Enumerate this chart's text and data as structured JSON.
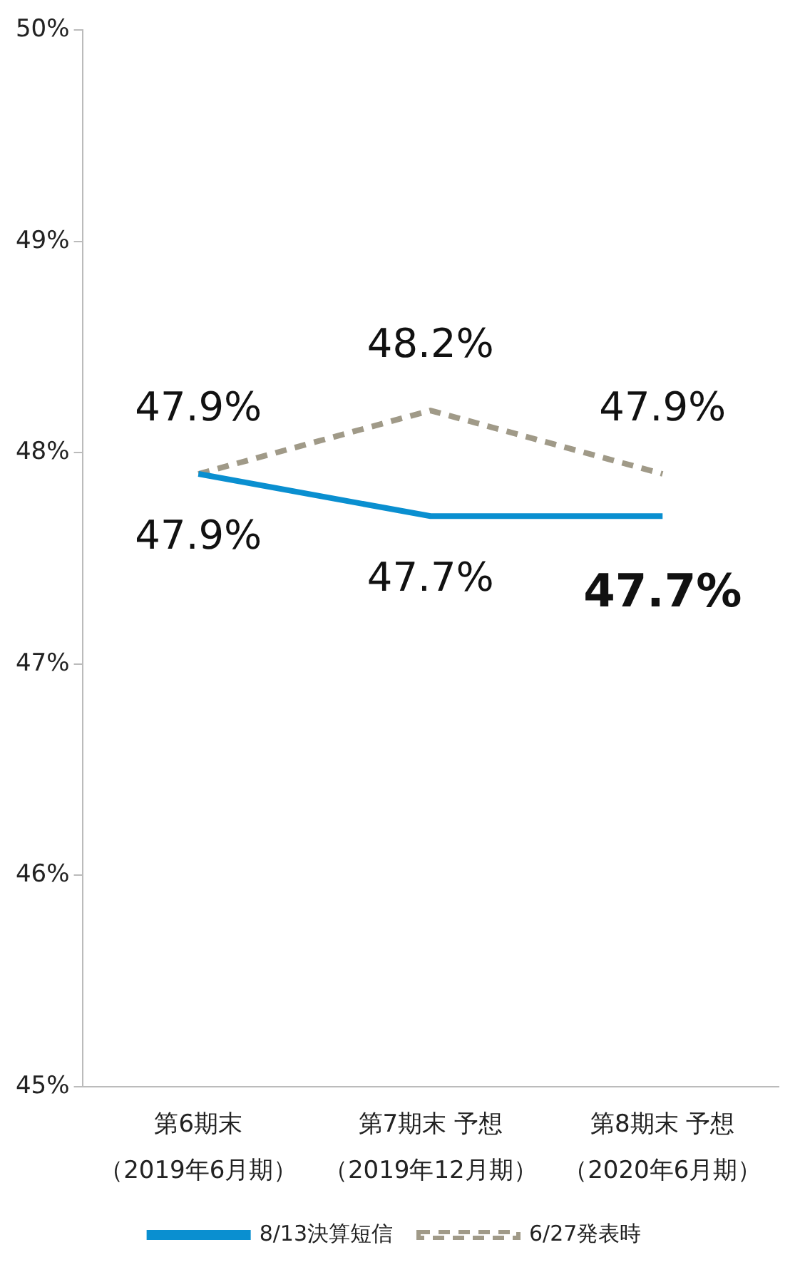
{
  "chart_data": {
    "type": "line",
    "categories": [
      "第6期末（2019年6月期）",
      "第7期末 予想（2019年12月期）",
      "第8期末 予想（2020年6月期）"
    ],
    "series": [
      {
        "name": "8/13決算短信",
        "color": "#0a8fd0",
        "values": [
          47.9,
          47.7,
          47.7
        ],
        "value_labels": [
          "47.9%",
          "47.7%",
          "47.7%"
        ],
        "line_style": "solid"
      },
      {
        "name": "6/27発表時",
        "color": "#a09a88",
        "values": [
          47.9,
          48.2,
          47.9
        ],
        "value_labels": [
          "47.9%",
          "48.2%",
          "47.9%"
        ],
        "line_style": "dashed"
      }
    ],
    "ylim": [
      45,
      50
    ],
    "yticks": [
      {
        "value": 45,
        "label": "45%"
      },
      {
        "value": 46,
        "label": "46%"
      },
      {
        "value": 47,
        "label": "47%"
      },
      {
        "value": 48,
        "label": "48%"
      },
      {
        "value": 49,
        "label": "49%"
      },
      {
        "value": 50,
        "label": "50%"
      }
    ],
    "legend": "bottom",
    "marker": "none"
  }
}
